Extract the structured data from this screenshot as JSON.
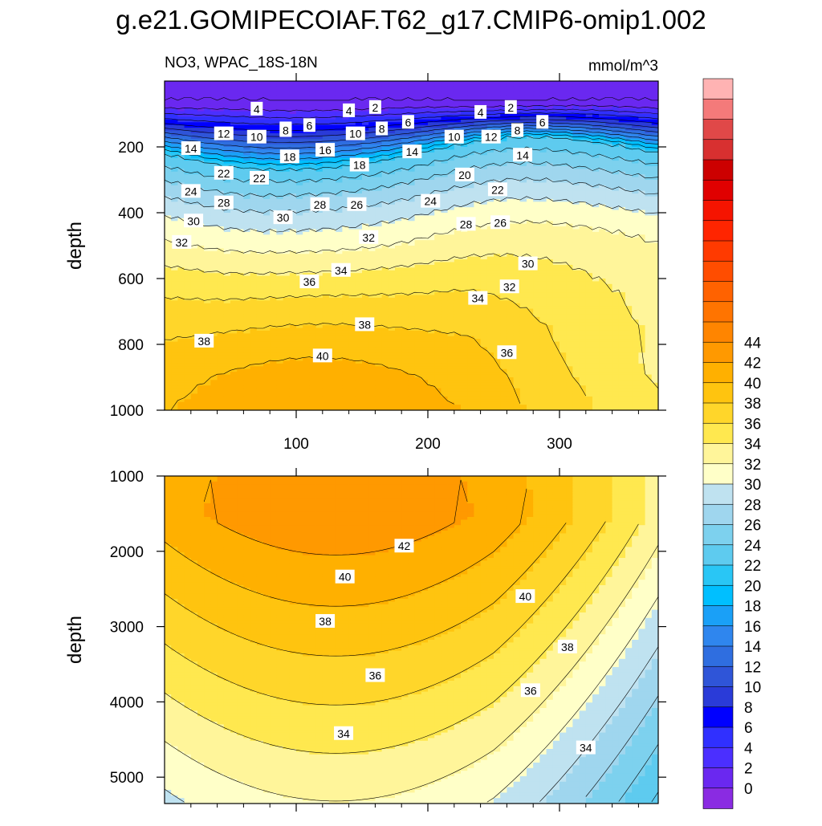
{
  "title": "g.e21.GOMIPECOIAF.T62_g17.CMIP6-omip1.002",
  "variable_label": "NO3, WPAC_18S-18N",
  "units_label": "mmol/m^3",
  "colors": {
    "levels": [
      "#8a2be2",
      "#6a28f0",
      "#4b2fff",
      "#3030ff",
      "#0000ff",
      "#2a3bd8",
      "#2f55d8",
      "#2f6ee0",
      "#2f86ee",
      "#1aa0f7",
      "#00bfff",
      "#29c6f5",
      "#5ecbef",
      "#7dd1ee",
      "#9fd6ee",
      "#bfe2f0",
      "#ffffc8",
      "#fff59a",
      "#ffe84f",
      "#ffd62a",
      "#ffc40f",
      "#ffb000",
      "#ff9900",
      "#ff8500",
      "#ff7400",
      "#ff6200",
      "#ff4d00",
      "#ff3a00",
      "#ff2500",
      "#f51400",
      "#e00000",
      "#cc0000",
      "#d83030",
      "#e04848",
      "#f47a7a",
      "#ffb3b3"
    ]
  },
  "chart_data": [
    {
      "type": "contour",
      "panel": "upper",
      "variable": "NO3",
      "region": "WPAC_18S-18N",
      "units": "mmol/m^3",
      "ylabel": "depth",
      "xlabel": "",
      "xlim": [
        0,
        375
      ],
      "ylim": [
        1000,
        0
      ],
      "x_ticks": [
        100,
        200,
        300
      ],
      "y_ticks": [
        200,
        400,
        600,
        800,
        1000
      ],
      "contour_labels": [
        {
          "v": "4",
          "x": 70,
          "d": 85
        },
        {
          "v": "4",
          "x": 140,
          "d": 90
        },
        {
          "v": "2",
          "x": 160,
          "d": 80
        },
        {
          "v": "4",
          "x": 240,
          "d": 95
        },
        {
          "v": "2",
          "x": 263,
          "d": 80
        },
        {
          "v": "6",
          "x": 185,
          "d": 125
        },
        {
          "v": "6",
          "x": 287,
          "d": 125
        },
        {
          "v": "12",
          "x": 45,
          "d": 160
        },
        {
          "v": "10",
          "x": 70,
          "d": 170
        },
        {
          "v": "8",
          "x": 92,
          "d": 145
        },
        {
          "v": "6",
          "x": 110,
          "d": 135
        },
        {
          "v": "10",
          "x": 145,
          "d": 160
        },
        {
          "v": "8",
          "x": 165,
          "d": 145
        },
        {
          "v": "10",
          "x": 220,
          "d": 170
        },
        {
          "v": "12",
          "x": 248,
          "d": 170
        },
        {
          "v": "8",
          "x": 268,
          "d": 150
        },
        {
          "v": "14",
          "x": 20,
          "d": 205
        },
        {
          "v": "8",
          "x": 92,
          "d": 150
        },
        {
          "v": "18",
          "x": 95,
          "d": 230
        },
        {
          "v": "16",
          "x": 122,
          "d": 210
        },
        {
          "v": "14",
          "x": 188,
          "d": 215
        },
        {
          "v": "14",
          "x": 272,
          "d": 225
        },
        {
          "v": "22",
          "x": 45,
          "d": 280
        },
        {
          "v": "22",
          "x": 72,
          "d": 295
        },
        {
          "v": "18",
          "x": 148,
          "d": 255
        },
        {
          "v": "20",
          "x": 228,
          "d": 285
        },
        {
          "v": "24",
          "x": 20,
          "d": 335
        },
        {
          "v": "22",
          "x": 253,
          "d": 330
        },
        {
          "v": "28",
          "x": 45,
          "d": 370
        },
        {
          "v": "28",
          "x": 118,
          "d": 375
        },
        {
          "v": "26",
          "x": 146,
          "d": 375
        },
        {
          "v": "24",
          "x": 202,
          "d": 365
        },
        {
          "v": "30",
          "x": 22,
          "d": 425
        },
        {
          "v": "30",
          "x": 90,
          "d": 415
        },
        {
          "v": "28",
          "x": 229,
          "d": 435
        },
        {
          "v": "26",
          "x": 255,
          "d": 430
        },
        {
          "v": "32",
          "x": 13,
          "d": 490
        },
        {
          "v": "32",
          "x": 155,
          "d": 475
        },
        {
          "v": "30",
          "x": 276,
          "d": 555
        },
        {
          "v": "34",
          "x": 134,
          "d": 575
        },
        {
          "v": "36",
          "x": 110,
          "d": 610
        },
        {
          "v": "32",
          "x": 262,
          "d": 625
        },
        {
          "v": "34",
          "x": 238,
          "d": 660
        },
        {
          "v": "38",
          "x": 30,
          "d": 790
        },
        {
          "v": "38",
          "x": 152,
          "d": 740
        },
        {
          "v": "40",
          "x": 120,
          "d": 835
        },
        {
          "v": "36",
          "x": 260,
          "d": 825
        }
      ]
    },
    {
      "type": "contour",
      "panel": "lower",
      "variable": "NO3",
      "units": "mmol/m^3",
      "ylabel": "depth",
      "xlabel": "",
      "xlim": [
        0,
        375
      ],
      "ylim": [
        5350,
        1000
      ],
      "x_ticks": [
        100,
        200,
        300
      ],
      "y_ticks": [
        1000,
        2000,
        3000,
        4000,
        5000
      ],
      "contour_labels": [
        {
          "v": "42",
          "x": 182,
          "d": 1930
        },
        {
          "v": "40",
          "x": 137,
          "d": 2340
        },
        {
          "v": "40",
          "x": 274,
          "d": 2600
        },
        {
          "v": "38",
          "x": 122,
          "d": 2930
        },
        {
          "v": "38",
          "x": 306,
          "d": 3270
        },
        {
          "v": "36",
          "x": 160,
          "d": 3650
        },
        {
          "v": "36",
          "x": 278,
          "d": 3850
        },
        {
          "v": "34",
          "x": 136,
          "d": 4420
        },
        {
          "v": "34",
          "x": 320,
          "d": 4610
        }
      ]
    }
  ],
  "colorbar": {
    "labels": [
      "0",
      "2",
      "4",
      "6",
      "8",
      "10",
      "12",
      "14",
      "16",
      "18",
      "20",
      "22",
      "24",
      "26",
      "28",
      "30",
      "32",
      "34",
      "36",
      "38",
      "40",
      "42",
      "44"
    ]
  }
}
